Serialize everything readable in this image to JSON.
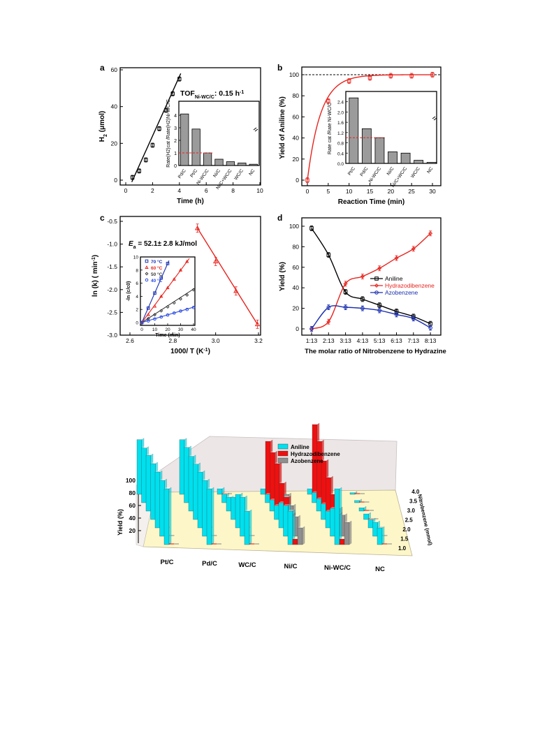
{
  "figure": {
    "a": {
      "letter": "a",
      "xlabel": "Time (h)",
      "ylabel": "H",
      "ylabel_sub": "2",
      "ylabel_unit": " (μmol)",
      "xticks": [
        "0",
        "2",
        "4",
        "6",
        "8",
        "10"
      ],
      "yticks": [
        "0",
        "20",
        "40",
        "60"
      ],
      "annot_main": "TOF",
      "annot_sub": "Ni-WC/C",
      "annot_value": ": 0.15 h",
      "annot_sup": "-1"
    },
    "b": {
      "letter": "b",
      "xlabel": "Reaction Time (min)",
      "ylabel": "Yield of Aniline (%)",
      "xticks": [
        "0",
        "5",
        "10",
        "15",
        "20",
        "25",
        "30"
      ],
      "yticks": [
        "0",
        "20",
        "40",
        "60",
        "80",
        "100"
      ]
    },
    "c": {
      "letter": "c",
      "xlabel": "1000/ T (K",
      "xlabel_sup": "-1",
      "ylabel": "ln (k) ( min",
      "ylabel_sup": "-1",
      "xticks": [
        "2.6",
        "2.8",
        "3.0",
        "3.2"
      ],
      "yticks": [
        "-3.0",
        "-2.5",
        "-2.0",
        "-1.5",
        "-1.0",
        "-0.5"
      ],
      "annot": "E",
      "annot_sub": "a",
      "annot_rest": " = 52.1± 2.8 kJ/mol"
    },
    "d": {
      "letter": "d",
      "xlabel": "The molar ratio of Nitrobenzene to Hydrazine",
      "ylabel": "Yield (%)",
      "xticks": [
        "1:13",
        "2:13",
        "3:13",
        "4:13",
        "5:13",
        "6:13",
        "7:13",
        "8:13"
      ],
      "yticks": [
        "0",
        "20",
        "40",
        "60",
        "80",
        "100"
      ]
    },
    "e": {
      "zlabel": "Yield (%)",
      "ylabel": "Nitrobenzene (mmol)",
      "zticks": [
        "20",
        "40",
        "60",
        "80",
        "100"
      ],
      "yticks": [
        "1.0",
        "1.5",
        "2.0",
        "2.5",
        "3.0",
        "3.5",
        "4.0"
      ]
    }
  },
  "colors": {
    "axis": "#000000",
    "red": "#e8231d",
    "blue": "#1a2fb0",
    "gray_bar": "#9b9b9b",
    "dark_gray": "#3a3a3a",
    "cyan": "#00e0ee",
    "bar_red": "#ee1010",
    "bar_gray": "#8f8f8f",
    "floor": "#fdf6c8",
    "back_wall": "#ece6e6"
  },
  "chart_data": [
    {
      "panel": "a",
      "type": "line",
      "xlabel": "Time (h)",
      "ylabel": "H2 (μmol)",
      "xlim": [
        0,
        10
      ],
      "ylim": [
        -2,
        60
      ],
      "series": [
        {
          "x": [
            0.5,
            1.0,
            1.5,
            2.0,
            2.5,
            3.0,
            3.5,
            4.0
          ],
          "y": [
            1.5,
            5.0,
            11.0,
            19.0,
            28.0,
            38.0,
            47.0,
            55.0
          ]
        }
      ],
      "inset": {
        "type": "bar",
        "ylabel": "Rate(H2)cat /Rate(H2)Ni-WC/C",
        "categories": [
          "Pd/C",
          "Pt/C",
          "Ni-WC/C",
          "Ni/C",
          "Ni/C+WC/C",
          "WC/C",
          "NC"
        ],
        "values": [
          4.1,
          2.9,
          1.0,
          0.5,
          0.3,
          0.2,
          0.1
        ],
        "ylim": [
          0,
          5
        ]
      }
    },
    {
      "panel": "b",
      "type": "line",
      "xlabel": "Reaction Time (min)",
      "ylabel": "Yield of Aniline (%)",
      "xlim": [
        -1,
        31
      ],
      "ylim": [
        -2,
        110
      ],
      "series": [
        {
          "x": [
            0,
            5,
            10,
            15,
            20,
            25,
            30
          ],
          "y": [
            0,
            75,
            94,
            97,
            99,
            99,
            100
          ]
        }
      ],
      "reference_line": 100,
      "inset": {
        "type": "bar",
        "ylabel": "Rate cat /Rate Ni-WC/C",
        "categories": [
          "Pt/C",
          "Pd/C",
          "Ni-WC/C",
          "Ni/C",
          "Ni/C+WC/C",
          "WC/C",
          "NC"
        ],
        "values": [
          2.55,
          1.35,
          1.0,
          0.45,
          0.4,
          0.12,
          0.04
        ],
        "ylim": [
          0,
          2.8
        ],
        "yticks": [
          "0.0",
          "0.4",
          "0.8",
          "1.2",
          "1.6",
          "2.0",
          "2.4"
        ]
      }
    },
    {
      "panel": "c",
      "type": "line",
      "xlabel": "1000/T (K-1)",
      "ylabel": "ln(k) (min-1)",
      "xlim": [
        2.55,
        3.2
      ],
      "ylim": [
        -3.0,
        -0.5
      ],
      "series": [
        {
          "x": [
            2.915,
            3.0,
            3.095,
            3.195
          ],
          "y": [
            -0.65,
            -1.38,
            -2.03,
            -2.76
          ]
        }
      ],
      "inset": {
        "type": "scatter",
        "xlabel": "Time (min)",
        "ylabel": "-ln (c/c0)",
        "xlim": [
          0,
          40
        ],
        "ylim": [
          0,
          10
        ],
        "series": [
          {
            "name": "70 °C",
            "x": [
              0,
              5,
              10,
              15,
              20
            ],
            "y": [
              0,
              2.2,
              4.5,
              6.8,
              9.0
            ]
          },
          {
            "name": "60 °C",
            "x": [
              0,
              5,
              10,
              15,
              20,
              25,
              30,
              35
            ],
            "y": [
              0,
              1.2,
              2.5,
              4.0,
              5.3,
              6.6,
              8.0,
              9.3
            ]
          },
          {
            "name": "50 °C",
            "x": [
              0,
              5,
              10,
              15,
              20,
              25,
              30,
              35,
              40
            ],
            "y": [
              0,
              0.6,
              1.2,
              1.8,
              2.4,
              3.0,
              3.6,
              4.2,
              5.0
            ]
          },
          {
            "name": "40 °C",
            "x": [
              0,
              5,
              10,
              15,
              20,
              25,
              30,
              35,
              40
            ],
            "y": [
              0,
              0.25,
              0.55,
              0.85,
              1.15,
              1.45,
              1.75,
              2.0,
              2.3
            ]
          }
        ]
      }
    },
    {
      "panel": "d",
      "type": "line",
      "xlabel": "The molar ratio of Nitrobenzene to Hydrazine",
      "ylabel": "Yield (%)",
      "categories": [
        "1:13",
        "2:13",
        "3:13",
        "4:13",
        "5:13",
        "6:13",
        "7:13",
        "8:13"
      ],
      "ylim": [
        0,
        100
      ],
      "legend": "center-right",
      "series": [
        {
          "name": "Aniline",
          "values": [
            98,
            72,
            36,
            29,
            23,
            17,
            12,
            5
          ]
        },
        {
          "name": "Hydrazodibenzene",
          "values": [
            0,
            7,
            44,
            51,
            59,
            69,
            78,
            93
          ]
        },
        {
          "name": "Azobenzene",
          "values": [
            0,
            21,
            21,
            20,
            18,
            14,
            10,
            1
          ]
        }
      ]
    },
    {
      "panel": "e",
      "type": "bar",
      "zlabel": "Yield (%)",
      "ylabel": "Nitrobenzene (mmol)",
      "categories": [
        "Pt/C",
        "Pd/C",
        "WC/C",
        "Ni/C",
        "Ni-WC/C",
        "NC"
      ],
      "nitrobenzene_mmol": [
        1.0,
        1.5,
        2.0,
        2.5,
        3.0,
        3.5,
        4.0
      ],
      "legend": "top-center",
      "series": [
        {
          "name": "Aniline",
          "values": [
            [
              100,
              100,
              100,
              100,
              100,
              98,
              98
            ],
            [
              100,
              100,
              100,
              99,
              98,
              99,
              98
            ],
            [
              60,
              70,
              60,
              40,
              25,
              15,
              10
            ],
            [
              60,
              55,
              45,
              25,
              20,
              15,
              10
            ],
            [
              100,
              50,
              30,
              28,
              22,
              18,
              10
            ],
            [
              30,
              25,
              15,
              10,
              6,
              4,
              3
            ]
          ]
        },
        {
          "name": "Hydrazodibenzene",
          "values": [
            [
              0,
              0,
              0,
              0,
              0,
              0,
              0
            ],
            [
              0,
              0,
              0,
              0,
              0,
              0,
              0
            ],
            [
              0,
              0,
              0,
              0,
              0,
              0,
              0
            ],
            [
              10,
              40,
              55,
              65,
              85,
              90,
              95
            ],
            [
              10,
              40,
              60,
              75,
              90,
              110,
              125
            ],
            [
              0,
              0,
              0,
              0,
              0,
              0,
              0
            ]
          ]
        },
        {
          "name": "Azobenzene",
          "values": [
            [
              0,
              0,
              0,
              0,
              0,
              0,
              0
            ],
            [
              0,
              0,
              0,
              0,
              0,
              0,
              0
            ],
            [
              0,
              0,
              0,
              0,
              0,
              0,
              0
            ],
            [
              30,
              35,
              40,
              45,
              30,
              20,
              15
            ],
            [
              40,
              38,
              35,
              30,
              25,
              20,
              15
            ],
            [
              0,
              0,
              0,
              0,
              0,
              0,
              0
            ]
          ]
        }
      ]
    }
  ]
}
